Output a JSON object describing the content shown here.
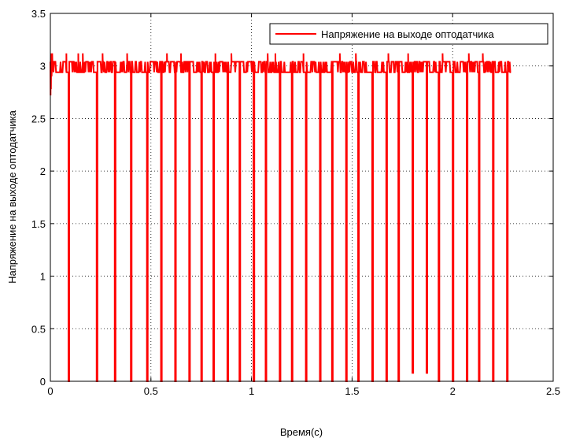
{
  "chart_data": {
    "type": "line",
    "xlabel": "Время(с)",
    "ylabel": "Напряжение на выходе оптодатчика",
    "xlim": [
      0,
      2.5
    ],
    "ylim": [
      0,
      3.5
    ],
    "xticks": [
      0,
      0.5,
      1,
      1.5,
      2,
      2.5
    ],
    "yticks": [
      0,
      0.5,
      1,
      1.5,
      2,
      2.5,
      3,
      3.5
    ],
    "xtick_labels": [
      "0",
      "0.5",
      "1",
      "1.5",
      "2",
      "2.5"
    ],
    "ytick_labels": [
      "0",
      "0.5",
      "1",
      "1.5",
      "2",
      "2.5",
      "3",
      "3.5"
    ],
    "grid": true,
    "legend_position": "top-right",
    "colors": {
      "series": "#ff0000",
      "axes": "#000000",
      "grid": "#000000"
    },
    "series": [
      {
        "name": "Напряжение на выходе оптодатчика",
        "x_end": 2.29,
        "high_level": [
          2.94,
          3.04
        ],
        "upper_spikes": [
          0.01,
          0.08,
          0.14,
          0.16,
          0.26,
          0.38,
          0.58,
          0.65,
          0.82,
          0.9,
          1.08,
          1.12,
          1.26,
          1.44,
          1.52,
          1.68,
          1.78,
          1.95,
          2.08,
          2.15
        ],
        "drops": [
          {
            "x": 0.09,
            "min": 0
          },
          {
            "x": 0.23,
            "min": 0
          },
          {
            "x": 0.32,
            "min": 0
          },
          {
            "x": 0.4,
            "min": 0
          },
          {
            "x": 0.48,
            "min": 0
          },
          {
            "x": 0.55,
            "min": 0
          },
          {
            "x": 0.62,
            "min": 0
          },
          {
            "x": 0.69,
            "min": 0
          },
          {
            "x": 0.75,
            "min": 0
          },
          {
            "x": 0.81,
            "min": 0
          },
          {
            "x": 0.88,
            "min": 0
          },
          {
            "x": 0.94,
            "min": 0
          },
          {
            "x": 1.01,
            "min": 0
          },
          {
            "x": 1.07,
            "min": 0
          },
          {
            "x": 1.14,
            "min": 0
          },
          {
            "x": 1.2,
            "min": 0
          },
          {
            "x": 1.27,
            "min": 0
          },
          {
            "x": 1.34,
            "min": 0
          },
          {
            "x": 1.4,
            "min": 0
          },
          {
            "x": 1.47,
            "min": 0
          },
          {
            "x": 1.53,
            "min": 0
          },
          {
            "x": 1.6,
            "min": 0
          },
          {
            "x": 1.67,
            "min": 0
          },
          {
            "x": 1.73,
            "min": 0
          },
          {
            "x": 1.8,
            "min": 0.08
          },
          {
            "x": 1.87,
            "min": 0.08
          },
          {
            "x": 1.93,
            "min": 0
          },
          {
            "x": 2.0,
            "min": 0
          },
          {
            "x": 2.07,
            "min": 0
          },
          {
            "x": 2.13,
            "min": 0
          },
          {
            "x": 2.2,
            "min": 0
          },
          {
            "x": 2.27,
            "min": 0
          }
        ]
      }
    ]
  }
}
